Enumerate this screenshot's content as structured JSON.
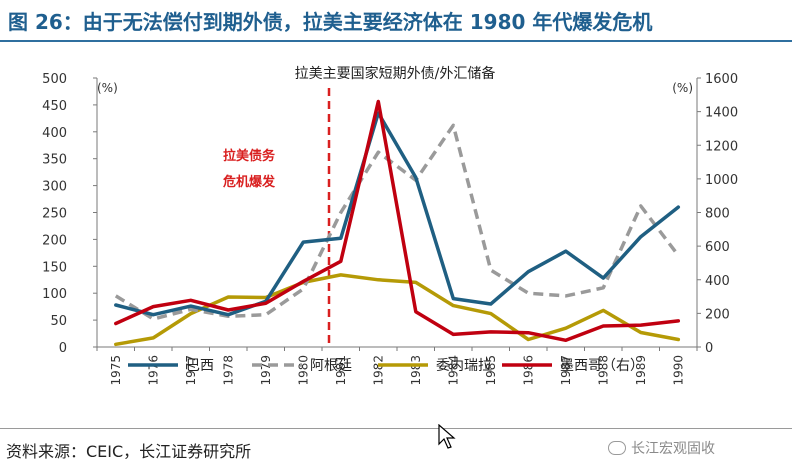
{
  "header": {
    "title": "图 26：由于无法偿付到期外债，拉美主要经济体在 1980 年代爆发危机"
  },
  "footer": {
    "source": "资料来源：CEIC，长江证券研究所",
    "watermark": "长江宏观固收"
  },
  "colors": {
    "header_text": "#1f5f8f",
    "brazil": "#1f5f82",
    "argentina": "#9a9a9a",
    "venezuela": "#b59a06",
    "mexico": "#c00010",
    "crisis_marker": "#d92020"
  },
  "chart_data": {
    "type": "line",
    "title": "拉美主要国家短期外债/外汇储备",
    "categories": [
      "1975",
      "1976",
      "1977",
      "1978",
      "1979",
      "1980",
      "1981",
      "1982",
      "1983",
      "1984",
      "1985",
      "1986",
      "1987",
      "1988",
      "1989",
      "1990"
    ],
    "left_axis": {
      "unit": "(%)",
      "ylim": [
        0,
        500
      ],
      "ticks": [
        0,
        50,
        100,
        150,
        200,
        250,
        300,
        350,
        400,
        450,
        500
      ]
    },
    "right_axis": {
      "unit": "(%)",
      "ylim": [
        0,
        1600
      ],
      "ticks": [
        0,
        200,
        400,
        600,
        800,
        1000,
        1200,
        1400,
        1600
      ]
    },
    "series": [
      {
        "name": "巴西",
        "axis": "left",
        "style": "solid",
        "values": [
          78,
          60,
          76,
          60,
          85,
          195,
          202,
          435,
          315,
          90,
          80,
          140,
          178,
          128,
          205,
          260
        ]
      },
      {
        "name": "阿根廷",
        "axis": "left",
        "style": "dashed",
        "values": [
          95,
          52,
          70,
          57,
          60,
          108,
          250,
          362,
          310,
          412,
          143,
          100,
          95,
          110,
          262,
          170
        ]
      },
      {
        "name": "委内瑞拉",
        "axis": "left",
        "style": "solid",
        "values": [
          5,
          17,
          62,
          93,
          92,
          120,
          134,
          125,
          120,
          77,
          62,
          14,
          35,
          68,
          27,
          14
        ]
      },
      {
        "name": "墨西哥（右）",
        "axis": "right",
        "style": "solid",
        "values": [
          140,
          240,
          278,
          220,
          260,
          390,
          510,
          1460,
          210,
          75,
          90,
          85,
          40,
          125,
          130,
          155
        ]
      }
    ],
    "annotations": [
      {
        "text": "拉美债务危机爆发",
        "between": [
          "1980",
          "1981"
        ]
      }
    ],
    "grid": false,
    "legend_position": "bottom"
  }
}
